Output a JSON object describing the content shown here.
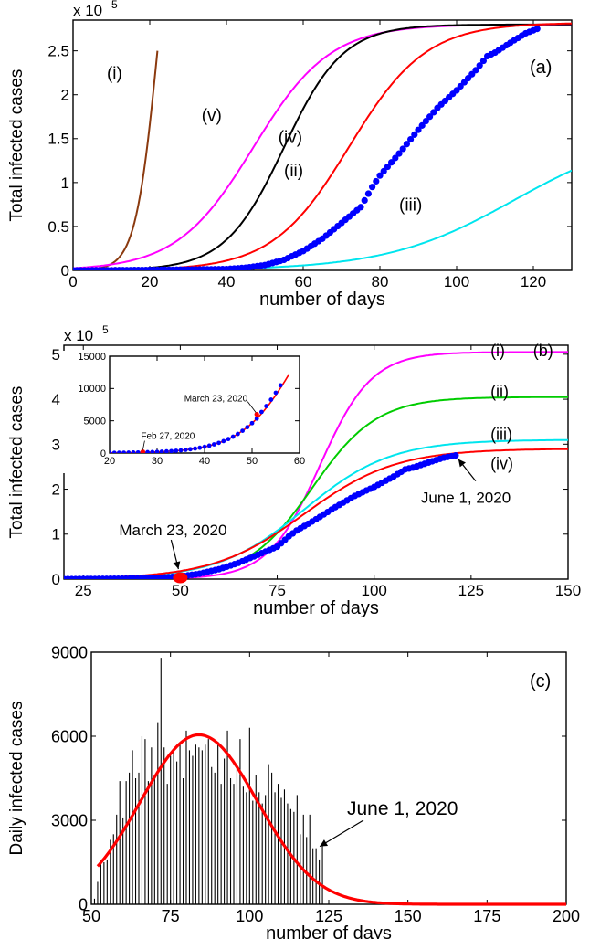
{
  "chart_data": [
    {
      "type": "line",
      "panel_label": "(a)",
      "multiplier_label": "x 10",
      "multiplier_exp": "5",
      "xlabel": "number of days",
      "ylabel": "Total infected cases",
      "xlim": [
        0,
        130
      ],
      "ylim": [
        0,
        285000
      ],
      "xticks": [
        0,
        20,
        40,
        60,
        80,
        100,
        120
      ],
      "yticks": [
        0,
        50000,
        100000,
        150000,
        200000,
        250000
      ],
      "ytick_labels": [
        "0",
        "0.5",
        "1",
        "1.5",
        "2",
        "2.5"
      ],
      "series": [
        {
          "kind": "logistic",
          "color": "#8b3a0f",
          "K": 500000,
          "r": 0.35,
          "t0": 22,
          "x0": 0,
          "x1": 22
        },
        {
          "kind": "logistic",
          "color": "#ff00ff",
          "K": 280000,
          "r": 0.1,
          "t0": 47,
          "x0": 0,
          "x1": 130
        },
        {
          "kind": "logistic",
          "color": "#000000",
          "K": 280000,
          "r": 0.13,
          "t0": 55,
          "x0": 0,
          "x1": 130
        },
        {
          "kind": "logistic",
          "color": "#ff0000",
          "K": 282000,
          "r": 0.1,
          "t0": 72,
          "x0": 0,
          "x1": 130
        },
        {
          "kind": "logistic",
          "color": "#00e5ee",
          "K": 160000,
          "r": 0.06,
          "t0": 115,
          "x0": 0,
          "x1": 130
        },
        {
          "kind": "points",
          "color": "#0000ff",
          "points": [
            [
              0,
              0
            ],
            [
              10,
              200
            ],
            [
              20,
              500
            ],
            [
              30,
              900
            ],
            [
              40,
              1500
            ],
            [
              45,
              3000
            ],
            [
              50,
              6000
            ],
            [
              55,
              12000
            ],
            [
              60,
              22000
            ],
            [
              65,
              36000
            ],
            [
              70,
              54000
            ],
            [
              75,
              72000
            ],
            [
              78,
              95000
            ],
            [
              80,
              108000
            ],
            [
              85,
              133000
            ],
            [
              90,
              160000
            ],
            [
              95,
              185000
            ],
            [
              100,
              205000
            ],
            [
              105,
              228000
            ],
            [
              108,
              244000
            ],
            [
              110,
              248000
            ],
            [
              115,
              262000
            ],
            [
              118,
              270000
            ],
            [
              121,
              275000
            ]
          ]
        }
      ],
      "annotations": [
        {
          "text": "(i)",
          "x": 8.8,
          "y": 218000
        },
        {
          "text": "(v)",
          "x": 33.5,
          "y": 170000
        },
        {
          "text": "(iv)",
          "x": 53.5,
          "y": 145000
        },
        {
          "text": "(ii)",
          "x": 55,
          "y": 107000
        },
        {
          "text": "(iii)",
          "x": 85,
          "y": 68000
        }
      ]
    },
    {
      "type": "line",
      "panel_label": "(b)",
      "multiplier_label": "x 10",
      "multiplier_exp": "5",
      "xlabel": "number of days",
      "ylabel": "Total infected cases",
      "xlim": [
        20,
        150
      ],
      "ylim": [
        0,
        520000
      ],
      "xticks": [
        25,
        50,
        75,
        100,
        125,
        150
      ],
      "yticks": [
        0,
        100000,
        200000,
        300000,
        400000,
        500000
      ],
      "ytick_labels": [
        "0",
        "1",
        "2",
        "3",
        "4",
        "5"
      ],
      "series": [
        {
          "kind": "logistic",
          "color": "#ff00ff",
          "K": 505000,
          "r": 0.15,
          "t0": 86,
          "x0": 20,
          "x1": 150
        },
        {
          "kind": "logistic",
          "color": "#00cc00",
          "K": 405000,
          "r": 0.12,
          "t0": 84,
          "x0": 20,
          "x1": 150
        },
        {
          "kind": "logistic",
          "color": "#00e5ee",
          "K": 310000,
          "r": 0.09,
          "t0": 82,
          "x0": 20,
          "x1": 150
        },
        {
          "kind": "logistic",
          "color": "#ff0000",
          "K": 290000,
          "r": 0.085,
          "t0": 82,
          "x0": 20,
          "x1": 150
        },
        {
          "kind": "points",
          "color": "#0000ff",
          "points": [
            [
              20,
              0
            ],
            [
              30,
              500
            ],
            [
              40,
              1500
            ],
            [
              45,
              3000
            ],
            [
              50,
              6000
            ],
            [
              55,
              12000
            ],
            [
              60,
              22000
            ],
            [
              65,
              36000
            ],
            [
              70,
              54000
            ],
            [
              75,
              72000
            ],
            [
              78,
              95000
            ],
            [
              80,
              108000
            ],
            [
              85,
              133000
            ],
            [
              90,
              160000
            ],
            [
              95,
              185000
            ],
            [
              100,
              205000
            ],
            [
              105,
              228000
            ],
            [
              108,
              244000
            ],
            [
              110,
              248000
            ],
            [
              115,
              262000
            ],
            [
              118,
              270000
            ],
            [
              121,
              275000
            ]
          ]
        }
      ],
      "annotations": [
        {
          "text": "(i)",
          "x": 130,
          "y": 496000
        },
        {
          "text": "(b)",
          "x": 141,
          "y": 496000
        },
        {
          "text": "(ii)",
          "x": 130,
          "y": 405000
        },
        {
          "text": "(iii)",
          "x": 130,
          "y": 310000
        },
        {
          "text": "(iv)",
          "x": 130,
          "y": 245000
        }
      ],
      "callouts": [
        {
          "text": "June 1, 2020",
          "x": 121,
          "y": 275000
        },
        {
          "text": "March 23, 2020",
          "x": 50,
          "y": 6000
        }
      ],
      "inset": {
        "xlim": [
          20,
          60
        ],
        "ylim": [
          0,
          15000
        ],
        "xticks": [
          20,
          30,
          40,
          50,
          60
        ],
        "yticks": [
          0,
          5000,
          10000,
          15000
        ],
        "callouts": [
          {
            "text": "March 23, 2020",
            "x": 51,
            "y": 6000
          },
          {
            "text": "Feb 27, 2020",
            "x": 27,
            "y": 200
          }
        ]
      }
    },
    {
      "type": "bar",
      "panel_label": "(c)",
      "xlabel": "number of days",
      "ylabel": "Daily infected cases",
      "xlim": [
        50,
        200
      ],
      "ylim": [
        0,
        9000
      ],
      "xticks": [
        50,
        75,
        100,
        125,
        150,
        175,
        200
      ],
      "yticks": [
        0,
        3000,
        6000,
        9000
      ],
      "x_start": 51,
      "values": [
        200,
        800,
        1500,
        1500,
        1600,
        2300,
        2500,
        3200,
        4400,
        3100,
        4400,
        4700,
        5500,
        4500,
        4700,
        6000,
        5900,
        4400,
        5600,
        4500,
        6500,
        8800,
        5600,
        4300,
        5300,
        5500,
        5100,
        5700,
        4500,
        6200,
        5500,
        5300,
        5700,
        5600,
        5500,
        5700,
        5900,
        4900,
        4700,
        5800,
        4300,
        5200,
        6200,
        4500,
        4300,
        4900,
        5900,
        4200,
        4000,
        6300,
        3700,
        4600,
        4000,
        3600,
        3900,
        5000,
        4700,
        4000,
        4300,
        3800,
        4100,
        3600,
        3400,
        3300,
        3900,
        2500,
        3200,
        2400,
        3200,
        2000,
        2000,
        1600,
        2200
      ],
      "fit": {
        "A": 6050,
        "mu": 84,
        "sigma": 18.5,
        "x0": 52,
        "x1": 200,
        "color": "#ff0000"
      },
      "callout": {
        "text": "June 1, 2020",
        "x": 121,
        "y": 2000
      }
    }
  ]
}
